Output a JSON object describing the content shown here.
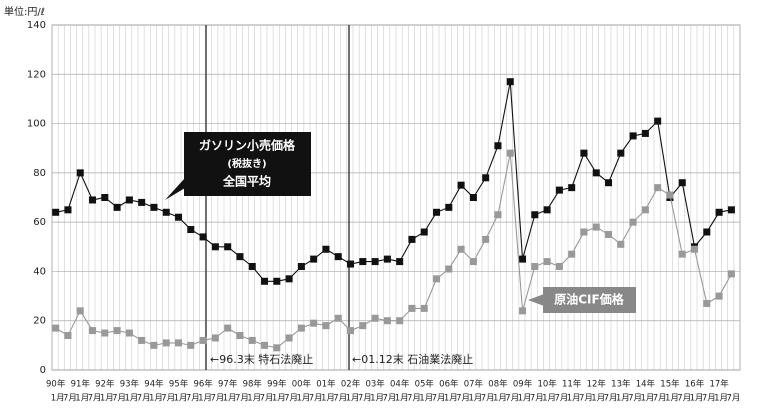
{
  "chart_data": {
    "type": "line",
    "unit_label": "単位:円/ℓ",
    "years": [
      "90年",
      "91年",
      "92年",
      "93年",
      "94年",
      "95年",
      "96年",
      "97年",
      "98年",
      "99年",
      "00年",
      "01年",
      "02年",
      "03年",
      "04年",
      "05年",
      "06年",
      "07年",
      "08年",
      "09年",
      "10年",
      "11年",
      "12年",
      "13年",
      "14年",
      "15年",
      "16年",
      "17年"
    ],
    "categories": [
      "1月",
      "7月",
      "1月",
      "7月",
      "1月",
      "7月",
      "1月",
      "7月",
      "1月",
      "7月",
      "1月",
      "7月",
      "1月",
      "7月",
      "1月",
      "7月",
      "1月",
      "7月",
      "1月",
      "7月",
      "1月",
      "7月",
      "1月",
      "7月",
      "1月",
      "7月",
      "1月",
      "7月",
      "1月",
      "7月",
      "1月",
      "7月",
      "1月",
      "7月",
      "1月",
      "7月",
      "1月",
      "7月",
      "1月",
      "7月",
      "1月",
      "7月",
      "1月",
      "7月",
      "1月",
      "7月",
      "1月",
      "7月",
      "1月",
      "7月",
      "1月",
      "7月",
      "1月",
      "7月",
      "1月",
      "7月"
    ],
    "series": [
      {
        "name": "ガソリン小売価格",
        "color": "#111111",
        "note1": "(税抜き)",
        "note2": "全国平均",
        "values": [
          64,
          65,
          80,
          69,
          70,
          66,
          69,
          68,
          66,
          64,
          62,
          57,
          54,
          50,
          50,
          46,
          42,
          36,
          36,
          37,
          42,
          45,
          49,
          46,
          43,
          44,
          44,
          45,
          44,
          53,
          56,
          64,
          66,
          75,
          70,
          78,
          91,
          117,
          45,
          63,
          65,
          73,
          74,
          88,
          80,
          76,
          88,
          95,
          96,
          101,
          70,
          76,
          50,
          56,
          64,
          65
        ]
      },
      {
        "name": "原油CIF価格",
        "color": "#999999",
        "values": [
          17,
          14,
          24,
          16,
          15,
          16,
          15,
          12,
          10,
          11,
          11,
          10,
          12,
          13,
          17,
          14,
          12,
          10,
          9,
          13,
          17,
          19,
          18,
          21,
          16,
          18,
          21,
          20,
          20,
          25,
          25,
          37,
          41,
          49,
          44,
          53,
          63,
          88,
          24,
          42,
          44,
          42,
          47,
          56,
          58,
          55,
          51,
          60,
          65,
          74,
          71,
          47,
          49,
          27,
          30,
          39
        ]
      }
    ],
    "annotations": [
      "←96.3末 特石法廃止",
      "←01.12末 石油業法廃止"
    ],
    "ylim": [
      0,
      140
    ],
    "yticks": [
      0,
      20,
      40,
      60,
      80,
      100,
      120,
      140
    ],
    "grid": true
  }
}
